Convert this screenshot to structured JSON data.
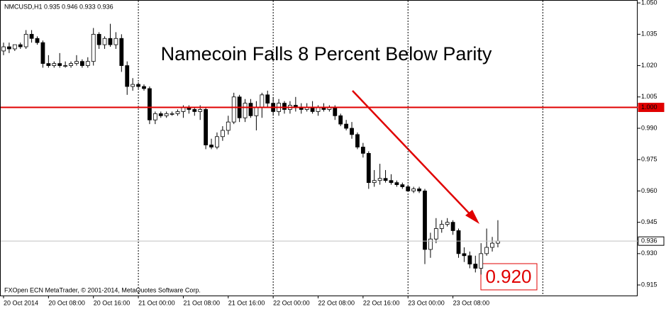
{
  "chart_data": {
    "type": "candlestick",
    "header": "NMCUSD,H1  0.935 0.946 0.933 0.936",
    "title": "Namecoin Falls 8 Percent Below Parity",
    "footer": "FXOpen ECN MetaTrader, © 2001-2014, MetaQuotes Software Corp.",
    "annotation": "0.920",
    "ylim": [
      0.9096,
      1.0514
    ],
    "yticks": [
      {
        "value": 1.05,
        "label": "1.050"
      },
      {
        "value": 1.035,
        "label": "1.035"
      },
      {
        "value": 1.02,
        "label": "1.020"
      },
      {
        "value": 1.005,
        "label": "1.005"
      },
      {
        "value": 0.99,
        "label": "0.990"
      },
      {
        "value": 0.975,
        "label": "0.975"
      },
      {
        "value": 0.96,
        "label": "0.960"
      },
      {
        "value": 0.945,
        "label": "0.945"
      },
      {
        "value": 0.93,
        "label": "0.930"
      },
      {
        "value": 0.915,
        "label": "0.915"
      }
    ],
    "hlines": [
      {
        "value": 1.0,
        "label": "1.000",
        "color": "#e00000"
      },
      {
        "value": 0.936,
        "label": "0.936",
        "color": "#c0c0c0"
      }
    ],
    "up_color": "#ffffff",
    "down_color": "#000000",
    "categories": [
      "20 Oct 2014",
      null,
      null,
      null,
      null,
      null,
      null,
      null,
      "20 Oct 08:00",
      null,
      null,
      null,
      null,
      null,
      null,
      null,
      "20 Oct 16:00",
      null,
      null,
      null,
      null,
      null,
      null,
      null,
      "21 Oct 00:00",
      null,
      null,
      null,
      null,
      null,
      null,
      null,
      "21 Oct 08:00",
      null,
      null,
      null,
      null,
      null,
      null,
      null,
      "21 Oct 16:00",
      null,
      null,
      null,
      null,
      null,
      null,
      null,
      "22 Oct 00:00",
      null,
      null,
      null,
      null,
      null,
      null,
      null,
      "22 Oct 08:00",
      null,
      null,
      null,
      null,
      null,
      null,
      null,
      "22 Oct 16:00",
      null,
      null,
      null,
      null,
      null,
      null,
      null,
      "23 Oct 00:00",
      null,
      null,
      null,
      null,
      null,
      null,
      null,
      "23 Oct 08:00",
      null,
      null,
      null,
      null,
      null,
      null,
      null,
      null
    ],
    "open": [
      1.027,
      1.029,
      1.028,
      1.03,
      1.029,
      1.035,
      1.033,
      1.031,
      1.021,
      1.02,
      1.021,
      1.02,
      1.02,
      1.021,
      1.022,
      1.02,
      1.022,
      1.035,
      1.03,
      1.033,
      1.03,
      1.033,
      1.02,
      1.01,
      1.011,
      1.01,
      1.009,
      0.994,
      0.997,
      0.996,
      0.997,
      0.997,
      0.998,
      1.0,
      0.999,
      0.998,
      0.999,
      0.982,
      0.981,
      0.986,
      0.989,
      0.993,
      1.005,
      0.995,
      1.002,
      0.996,
      1.0,
      1.006,
      1.002,
      0.998,
      1.002,
      0.999,
      1.001,
      1.0,
      0.999,
      1.0,
      0.998,
      1.0,
      0.999,
      1.0,
      0.996,
      0.992,
      0.99,
      0.987,
      0.981,
      0.978,
      0.964,
      0.965,
      0.966,
      0.965,
      0.964,
      0.963,
      0.962,
      0.96,
      0.961,
      0.96,
      0.932,
      0.937,
      0.942,
      0.944,
      0.945,
      0.941,
      0.93,
      0.929,
      0.925,
      0.923,
      0.93,
      0.933,
      0.935
    ],
    "high": [
      1.031,
      1.031,
      1.03,
      1.031,
      1.037,
      1.037,
      1.034,
      1.032,
      1.025,
      1.022,
      1.026,
      1.022,
      1.022,
      1.025,
      1.023,
      1.024,
      1.038,
      1.036,
      1.034,
      1.04,
      1.036,
      1.035,
      1.022,
      1.014,
      1.012,
      1.011,
      1.01,
      0.998,
      0.998,
      0.998,
      0.998,
      0.999,
      1.001,
      1.001,
      1.0,
      1.001,
      1.0,
      0.985,
      0.988,
      0.991,
      0.996,
      1.007,
      1.006,
      1.004,
      1.004,
      1.003,
      1.007,
      1.008,
      1.005,
      1.004,
      1.003,
      1.003,
      1.005,
      1.002,
      1.002,
      1.003,
      1.001,
      1.002,
      1.001,
      1.001,
      0.997,
      0.994,
      0.993,
      0.988,
      0.983,
      0.979,
      0.97,
      0.973,
      0.97,
      0.968,
      0.965,
      0.964,
      0.963,
      0.962,
      0.962,
      0.961,
      0.94,
      0.947,
      0.946,
      0.947,
      0.946,
      0.942,
      0.933,
      0.931,
      0.929,
      0.935,
      0.942,
      0.938,
      0.946
    ],
    "low": [
      1.025,
      1.026,
      1.027,
      1.028,
      1.028,
      1.031,
      1.03,
      1.019,
      1.019,
      1.019,
      1.019,
      1.019,
      1.019,
      1.02,
      1.019,
      1.019,
      1.02,
      1.028,
      1.028,
      1.029,
      1.028,
      1.017,
      1.006,
      1.008,
      1.009,
      1.008,
      0.992,
      0.992,
      0.995,
      0.995,
      0.996,
      0.996,
      0.995,
      0.997,
      0.996,
      0.994,
      0.98,
      0.98,
      0.98,
      0.984,
      0.987,
      0.992,
      0.993,
      0.993,
      0.995,
      0.989,
      0.995,
      1.0,
      0.996,
      0.996,
      0.997,
      0.997,
      0.998,
      0.997,
      0.998,
      0.997,
      0.996,
      0.998,
      0.998,
      0.994,
      0.991,
      0.989,
      0.985,
      0.98,
      0.976,
      0.961,
      0.962,
      0.963,
      0.964,
      0.963,
      0.962,
      0.961,
      0.96,
      0.959,
      0.959,
      0.925,
      0.928,
      0.935,
      0.94,
      0.943,
      0.939,
      0.928,
      0.926,
      0.923,
      0.921,
      0.92,
      0.929,
      0.931,
      0.933
    ],
    "close": [
      1.029,
      1.028,
      1.03,
      1.029,
      1.035,
      1.033,
      1.031,
      1.021,
      1.02,
      1.021,
      1.02,
      1.02,
      1.021,
      1.022,
      1.02,
      1.022,
      1.035,
      1.03,
      1.033,
      1.03,
      1.033,
      1.02,
      1.01,
      1.011,
      1.01,
      1.009,
      0.994,
      0.997,
      0.996,
      0.997,
      0.997,
      0.998,
      1.0,
      0.999,
      0.998,
      0.999,
      0.982,
      0.981,
      0.986,
      0.989,
      0.993,
      1.005,
      0.995,
      1.002,
      0.996,
      1.0,
      1.006,
      1.002,
      0.998,
      1.002,
      0.999,
      1.001,
      1.0,
      0.999,
      1.0,
      0.998,
      1.0,
      0.999,
      1.0,
      0.996,
      0.992,
      0.99,
      0.987,
      0.981,
      0.978,
      0.964,
      0.965,
      0.966,
      0.965,
      0.964,
      0.963,
      0.962,
      0.96,
      0.961,
      0.96,
      0.932,
      0.937,
      0.942,
      0.944,
      0.945,
      0.941,
      0.93,
      0.929,
      0.925,
      0.923,
      0.93,
      0.933,
      0.935,
      0.936
    ]
  }
}
